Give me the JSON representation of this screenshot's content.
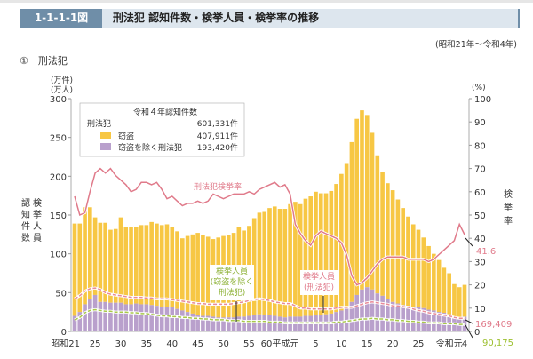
{
  "header": {
    "number": "1-1-1-1図",
    "title": "刑法犯 認知件数・検挙人員・検挙率の推移"
  },
  "period": "(昭和21年～令和4年)",
  "section": "①　刑法犯",
  "colors": {
    "theft": "#f7c744",
    "non_theft": "#b9a0cc",
    "rate": "#e07a8a",
    "arrest_total": "#e88a98",
    "arrest_non_theft": "#a8c84a"
  },
  "chart_data": {
    "type": "bar+line",
    "left_unit_1": "(万件)",
    "left_unit_2": "(万人)",
    "right_unit": "(%)",
    "left_axis_label_1": "認知件数",
    "left_axis_label_2": "検挙人員",
    "right_axis_label": "検挙率",
    "ylim": [
      0,
      300
    ],
    "y2lim": [
      0,
      100
    ],
    "yticks": [
      "0",
      "50",
      "100",
      "150",
      "200",
      "250",
      "300"
    ],
    "y2ticks": [
      "0",
      "10",
      "20",
      "30",
      "40",
      "50",
      "60",
      "70",
      "80",
      "90",
      "100"
    ],
    "xtick_labels": [
      {
        "year": 1946,
        "label": "昭和21"
      },
      {
        "year": 1950,
        "label": "25"
      },
      {
        "year": 1955,
        "label": "30"
      },
      {
        "year": 1960,
        "label": "35"
      },
      {
        "year": 1965,
        "label": "40"
      },
      {
        "year": 1970,
        "label": "45"
      },
      {
        "year": 1975,
        "label": "50"
      },
      {
        "year": 1980,
        "label": "55"
      },
      {
        "year": 1986,
        "label": "60平成元"
      },
      {
        "year": 1993,
        "label": "5"
      },
      {
        "year": 1998,
        "label": "10"
      },
      {
        "year": 2003,
        "label": "15"
      },
      {
        "year": 2008,
        "label": "20"
      },
      {
        "year": 2013,
        "label": "25"
      },
      {
        "year": 2019,
        "label": "令和元"
      },
      {
        "year": 2022,
        "label": "4"
      }
    ],
    "years_start": 1946,
    "years_end": 2022,
    "recognized_total": [
      139,
      139,
      160,
      160,
      147,
      140,
      140,
      131,
      132,
      147,
      135,
      135,
      135,
      137,
      137,
      141,
      139,
      137,
      138,
      134,
      129,
      120,
      123,
      125,
      127,
      124,
      122,
      119,
      121,
      123,
      124,
      127,
      134,
      130,
      136,
      146,
      153,
      154,
      159,
      161,
      158,
      158,
      164,
      167,
      164,
      171,
      174,
      180,
      178,
      178,
      181,
      190,
      203,
      217,
      244,
      274,
      285,
      279,
      256,
      227,
      205,
      191,
      182,
      170,
      159,
      148,
      138,
      131,
      121,
      110,
      100,
      92,
      82,
      75,
      61,
      57,
      60
    ],
    "recognized_non_theft": [
      20,
      25,
      35,
      42,
      47,
      38,
      38,
      37,
      37,
      37,
      35,
      35,
      36,
      35,
      35,
      34,
      33,
      32,
      32,
      31,
      29,
      27,
      25,
      23,
      21,
      20,
      20,
      19,
      18,
      18,
      18,
      18,
      19,
      19,
      20,
      21,
      22,
      21,
      21,
      20,
      19,
      18,
      19,
      19,
      19,
      20,
      20,
      21,
      21,
      22,
      23,
      25,
      27,
      31,
      38,
      47,
      54,
      57,
      54,
      49,
      46,
      42,
      38,
      36,
      34,
      33,
      32,
      32,
      30,
      28,
      27,
      25,
      24,
      22,
      19,
      18,
      19
    ],
    "arrest_total": [
      42,
      46,
      52,
      55,
      56,
      54,
      50,
      48,
      47,
      46,
      45,
      44,
      44,
      44,
      43,
      43,
      42,
      42,
      42,
      41,
      40,
      39,
      38,
      37,
      36,
      36,
      35,
      35,
      35,
      35,
      35,
      36,
      37,
      38,
      40,
      41,
      42,
      41,
      40,
      38,
      37,
      36,
      36,
      33,
      30,
      30,
      29,
      29,
      29,
      29,
      29,
      30,
      31,
      31,
      31,
      33,
      35,
      37,
      38,
      37,
      36,
      35,
      33,
      33,
      32,
      31,
      29,
      27,
      26,
      24,
      23,
      22,
      21,
      20,
      18,
      17,
      16.9
    ],
    "arrest_non_theft": [
      15,
      18,
      24,
      27,
      28,
      27,
      26,
      26,
      25,
      25,
      25,
      24,
      24,
      23,
      23,
      22,
      21,
      20,
      20,
      19,
      19,
      18,
      18,
      17,
      17,
      16,
      16,
      15,
      15,
      15,
      14,
      14,
      14,
      13,
      13,
      13,
      13,
      13,
      12,
      12,
      12,
      11,
      11,
      11,
      11,
      11,
      11,
      11,
      11,
      11,
      11,
      12,
      12,
      13,
      14,
      15,
      16,
      16,
      17,
      16,
      16,
      15,
      15,
      14,
      14,
      13,
      13,
      12,
      12,
      11,
      11,
      11,
      10,
      10,
      10,
      9,
      9.0
    ],
    "clearance_rate": [
      58,
      50,
      51,
      60,
      68,
      70,
      68,
      70,
      67,
      65,
      63,
      60,
      61,
      64,
      64,
      63,
      64,
      61,
      57,
      58,
      56,
      54,
      55,
      55,
      56,
      55,
      56,
      59,
      58,
      57,
      58,
      59,
      59,
      59,
      60,
      59,
      61,
      62,
      63,
      64,
      62,
      63,
      59,
      46,
      42,
      39,
      37,
      41,
      43,
      42,
      41,
      40,
      38,
      33,
      24,
      20,
      21,
      23,
      26,
      29,
      31,
      32,
      32,
      32,
      32,
      31,
      31,
      31,
      31,
      30,
      31,
      33,
      35,
      37,
      39,
      46,
      41.6
    ],
    "legend": {
      "title": "令和４年認知件数",
      "rows": [
        {
          "label": "刑法犯",
          "value": "601,331件"
        },
        {
          "label": "窃盗",
          "value": "407,911件"
        },
        {
          "label": "窃盗を除く刑法犯",
          "value": "193,420件"
        }
      ]
    },
    "annotations": {
      "rate_line": "刑法犯検挙率",
      "arrest_non_theft": [
        "検挙人員",
        "(窃盗を除く",
        "刑法犯)"
      ],
      "arrest_total": [
        "検挙人員",
        "(刑法犯)"
      ],
      "end_rate": "41.6",
      "end_arrest_total": "169,409",
      "end_arrest_non_theft": "90,175"
    }
  }
}
